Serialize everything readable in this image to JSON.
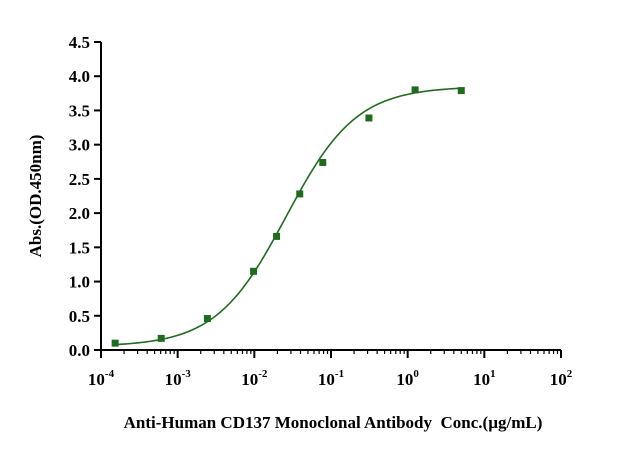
{
  "chart_data": {
    "type": "scatter",
    "title": "",
    "xlabel": "Anti-Human CD137 Monoclonal Antibody  Conc.(µg/mL)",
    "ylabel": "Abs.(OD.450nm)",
    "xscale": "log",
    "xlim": [
      0.0001,
      100
    ],
    "ylim": [
      0,
      4.5
    ],
    "grid": false,
    "legend": "none",
    "x_ticks": [
      {
        "base": "10",
        "exp": "-4",
        "value": 0.0001
      },
      {
        "base": "10",
        "exp": "-3",
        "value": 0.001
      },
      {
        "base": "10",
        "exp": "-2",
        "value": 0.01
      },
      {
        "base": "10",
        "exp": "-1",
        "value": 0.1
      },
      {
        "base": "10",
        "exp": "0",
        "value": 1
      },
      {
        "base": "10",
        "exp": "1",
        "value": 10
      },
      {
        "base": "10",
        "exp": "2",
        "value": 100
      }
    ],
    "y_ticks": [
      "0.0",
      "0.5",
      "1.0",
      "1.5",
      "2.0",
      "2.5",
      "3.0",
      "3.5",
      "4.0",
      "4.5"
    ],
    "series": [
      {
        "x": [
          0.000153,
          0.00061,
          0.00244,
          0.00977,
          0.0195,
          0.0391,
          0.0781,
          0.3125,
          1.25,
          5.0
        ],
        "y": [
          0.1,
          0.17,
          0.46,
          1.15,
          1.66,
          2.28,
          2.74,
          3.39,
          3.8,
          3.79
        ],
        "color": "#1f6b1f",
        "marker": "square",
        "fit": "4PL"
      }
    ],
    "fit_params": {
      "bottom": 0.05,
      "top": 3.85,
      "ec50": 0.026,
      "hill": 0.95
    }
  }
}
